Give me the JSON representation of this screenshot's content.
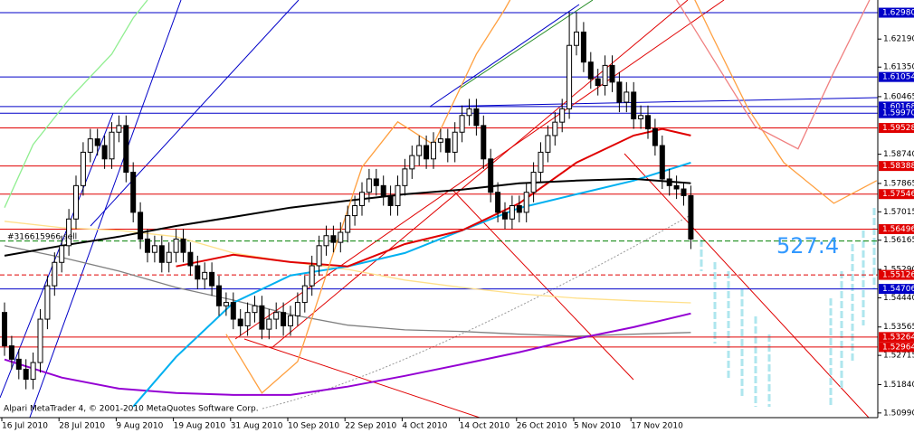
{
  "chart_data": {
    "type": "candlestick",
    "ylim": [
      1.5085,
      1.6336
    ],
    "yticks": [
      {
        "value": 1.6219,
        "label": "1.62190"
      },
      {
        "value": 1.6135,
        "label": "1.61350"
      },
      {
        "value": 1.60465,
        "label": "1.60465"
      },
      {
        "value": 1.5874,
        "label": "1.58740"
      },
      {
        "value": 1.57865,
        "label": "1.57865"
      },
      {
        "value": 1.57015,
        "label": "1.57015"
      },
      {
        "value": 1.56165,
        "label": "1.56165"
      },
      {
        "value": 1.5529,
        "label": "1.55290"
      },
      {
        "value": 1.5444,
        "label": "1.54440"
      },
      {
        "value": 1.53565,
        "label": "1.53565"
      },
      {
        "value": 1.52715,
        "label": "1.52715"
      },
      {
        "value": 1.5184,
        "label": "1.51840"
      },
      {
        "value": 1.5099,
        "label": "1.50990"
      }
    ],
    "categories": [
      "16 Jul 2010",
      null,
      null,
      null,
      null,
      null,
      null,
      null,
      "28 Jul 2010",
      null,
      null,
      null,
      null,
      null,
      null,
      null,
      "9 Aug 2010",
      null,
      null,
      null,
      null,
      null,
      null,
      null,
      "19 Aug 2010",
      null,
      null,
      null,
      null,
      null,
      null,
      null,
      "31 Aug 2010",
      null,
      null,
      null,
      null,
      null,
      null,
      null,
      "10 Sep 2010",
      null,
      null,
      null,
      null,
      null,
      null,
      null,
      "22 Sep 2010",
      null,
      null,
      null,
      null,
      null,
      null,
      null,
      "4 Oct 2010",
      null,
      null,
      null,
      null,
      null,
      null,
      null,
      "14 Oct 2010",
      null,
      null,
      null,
      null,
      null,
      null,
      null,
      "26 Oct 2010",
      null,
      null,
      null,
      null,
      null,
      null,
      null,
      "5 Nov 2010",
      null,
      null,
      null,
      null,
      null,
      null,
      null,
      "17 Nov 2010",
      null,
      null,
      null,
      null,
      null,
      null,
      null,
      null
    ],
    "open": [
      1.54,
      1.53,
      1.526,
      1.523,
      1.52,
      1.525,
      1.538,
      1.548,
      1.555,
      1.56,
      1.568,
      1.578,
      1.588,
      1.592,
      1.59,
      1.586,
      1.594,
      1.596,
      1.582,
      1.57,
      1.562,
      1.558,
      1.56,
      1.555,
      1.558,
      1.562,
      1.558,
      1.554,
      1.55,
      1.552,
      1.548,
      1.542,
      1.543,
      1.538,
      1.536,
      1.54,
      1.542,
      1.535,
      1.538,
      1.54,
      1.536,
      1.539,
      1.543,
      1.548,
      1.554,
      1.56,
      1.563,
      1.561,
      1.564,
      1.569,
      1.572,
      1.576,
      1.58,
      1.578,
      1.575,
      1.572,
      1.578,
      1.583,
      1.587,
      1.59,
      1.586,
      1.591,
      1.592,
      1.588,
      1.594,
      1.599,
      1.601,
      1.596,
      1.586,
      1.576,
      1.57,
      1.568,
      1.572,
      1.57,
      1.576,
      1.582,
      1.588,
      1.593,
      1.597,
      1.601,
      1.62,
      1.624,
      1.615,
      1.61,
      1.608,
      1.614,
      1.609,
      1.603,
      1.606,
      1.598,
      1.599,
      1.595,
      1.59,
      1.58,
      1.578,
      1.577,
      1.575
    ],
    "high": [
      1.543,
      1.533,
      1.529,
      1.526,
      1.528,
      1.541,
      1.551,
      1.558,
      1.563,
      1.571,
      1.581,
      1.591,
      1.595,
      1.595,
      1.593,
      1.597,
      1.599,
      1.599,
      1.585,
      1.573,
      1.565,
      1.563,
      1.563,
      1.561,
      1.565,
      1.565,
      1.561,
      1.557,
      1.555,
      1.555,
      1.551,
      1.546,
      1.546,
      1.541,
      1.543,
      1.545,
      1.545,
      1.541,
      1.543,
      1.543,
      1.542,
      1.546,
      1.551,
      1.557,
      1.563,
      1.566,
      1.566,
      1.567,
      1.572,
      1.575,
      1.579,
      1.583,
      1.583,
      1.581,
      1.578,
      1.581,
      1.586,
      1.59,
      1.593,
      1.593,
      1.594,
      1.595,
      1.595,
      1.597,
      1.602,
      1.604,
      1.604,
      1.599,
      1.589,
      1.579,
      1.573,
      1.575,
      1.575,
      1.579,
      1.585,
      1.591,
      1.596,
      1.6,
      1.604,
      1.63,
      1.63,
      1.627,
      1.618,
      1.613,
      1.617,
      1.617,
      1.612,
      1.609,
      1.609,
      1.602,
      1.602,
      1.598,
      1.593,
      1.583,
      1.581,
      1.579,
      1.578
    ],
    "low": [
      1.527,
      1.523,
      1.52,
      1.517,
      1.517,
      1.522,
      1.535,
      1.545,
      1.552,
      1.557,
      1.565,
      1.575,
      1.585,
      1.587,
      1.583,
      1.583,
      1.591,
      1.579,
      1.567,
      1.559,
      1.555,
      1.555,
      1.552,
      1.552,
      1.555,
      1.555,
      1.551,
      1.547,
      1.547,
      1.545,
      1.539,
      1.539,
      1.535,
      1.533,
      1.533,
      1.537,
      1.532,
      1.532,
      1.535,
      1.533,
      1.533,
      1.536,
      1.54,
      1.545,
      1.551,
      1.557,
      1.558,
      1.558,
      1.561,
      1.566,
      1.569,
      1.573,
      1.575,
      1.572,
      1.569,
      1.569,
      1.575,
      1.58,
      1.584,
      1.583,
      1.583,
      1.588,
      1.585,
      1.585,
      1.591,
      1.596,
      1.593,
      1.583,
      1.573,
      1.567,
      1.565,
      1.565,
      1.567,
      1.567,
      1.573,
      1.579,
      1.585,
      1.59,
      1.594,
      1.598,
      1.617,
      1.612,
      1.607,
      1.605,
      1.605,
      1.606,
      1.6,
      1.6,
      1.595,
      1.595,
      1.592,
      1.587,
      1.577,
      1.575,
      1.574,
      1.572,
      1.559
    ],
    "close": [
      1.53,
      1.526,
      1.523,
      1.52,
      1.525,
      1.538,
      1.548,
      1.555,
      1.56,
      1.568,
      1.578,
      1.588,
      1.592,
      1.59,
      1.586,
      1.594,
      1.596,
      1.582,
      1.57,
      1.562,
      1.558,
      1.56,
      1.555,
      1.558,
      1.562,
      1.558,
      1.554,
      1.55,
      1.552,
      1.548,
      1.542,
      1.543,
      1.538,
      1.536,
      1.54,
      1.542,
      1.535,
      1.538,
      1.54,
      1.536,
      1.539,
      1.543,
      1.548,
      1.554,
      1.56,
      1.563,
      1.561,
      1.564,
      1.569,
      1.572,
      1.576,
      1.58,
      1.578,
      1.575,
      1.572,
      1.578,
      1.583,
      1.587,
      1.59,
      1.586,
      1.591,
      1.592,
      1.588,
      1.594,
      1.599,
      1.601,
      1.596,
      1.586,
      1.576,
      1.57,
      1.568,
      1.572,
      1.57,
      1.576,
      1.582,
      1.588,
      1.593,
      1.597,
      1.601,
      1.62,
      1.624,
      1.615,
      1.61,
      1.608,
      1.614,
      1.609,
      1.603,
      1.606,
      1.598,
      1.599,
      1.595,
      1.59,
      1.58,
      1.578,
      1.577,
      1.575,
      1.562
    ],
    "indicators": [
      {
        "color": "#ffe08a",
        "x": [
          0,
          8,
          16,
          24,
          32,
          40,
          48,
          56,
          64,
          72,
          80,
          88,
          96
        ],
        "values": [
          1.5673,
          1.5654,
          1.5646,
          1.5627,
          1.5578,
          1.5551,
          1.5529,
          1.5497,
          1.5475,
          1.5456,
          1.5443,
          1.5435,
          1.5429
        ]
      },
      {
        "color": "#808080",
        "x": [
          0,
          8,
          16,
          24,
          32,
          40,
          48,
          56,
          64,
          72,
          80,
          88,
          96
        ],
        "values": [
          1.56,
          1.5565,
          1.5524,
          1.5475,
          1.5437,
          1.5394,
          1.5362,
          1.5348,
          1.5343,
          1.5335,
          1.5329,
          1.5335,
          1.534
        ]
      },
      {
        "color": "#9400d3",
        "x": [
          0,
          8,
          16,
          24,
          32,
          40,
          48,
          56,
          64,
          72,
          80,
          88,
          96
        ],
        "values": [
          1.5259,
          1.5205,
          1.5172,
          1.5159,
          1.5153,
          1.5153,
          1.5178,
          1.521,
          1.5245,
          1.5281,
          1.5321,
          1.5356,
          1.5397
        ]
      },
      {
        "color": "#00b0f0",
        "x": [
          18,
          24,
          32,
          40,
          48,
          56,
          64,
          72,
          80,
          88,
          96
        ],
        "values": [
          1.5118,
          1.5267,
          1.5429,
          1.5511,
          1.5538,
          1.5578,
          1.5646,
          1.5713,
          1.5754,
          1.5795,
          1.5849
        ]
      },
      {
        "color": "#e00000",
        "x": [
          24,
          32,
          40,
          48,
          56,
          64,
          72,
          80,
          88,
          92,
          96
        ],
        "values": [
          1.5538,
          1.5573,
          1.5551,
          1.5538,
          1.5605,
          1.5646,
          1.5727,
          1.5849,
          1.593,
          1.595,
          1.593
        ]
      },
      {
        "color": "#000000",
        "x": [
          0,
          8,
          16,
          24,
          32,
          40,
          48,
          56,
          64,
          72,
          80,
          88,
          96
        ],
        "values": [
          1.557,
          1.56,
          1.5627,
          1.5659,
          1.5686,
          1.5714,
          1.5735,
          1.5754,
          1.5768,
          1.5787,
          1.5795,
          1.58,
          1.5787
        ]
      },
      {
        "color": "#ffa040",
        "x": [
          31,
          36,
          41,
          46,
          50,
          55,
          60,
          66,
          70,
          75,
          94,
          99,
          104,
          109,
          116,
          122
        ],
        "values": [
          1.5335,
          1.5159,
          1.5253,
          1.5578,
          1.5835,
          1.5971,
          1.5903,
          1.6174,
          1.6309,
          1.65,
          1.645,
          1.6228,
          1.6011,
          1.5849,
          1.5727,
          1.5795
        ]
      },
      {
        "color": "#f08080",
        "x": [
          94,
          105,
          111,
          116,
          121
        ],
        "values": [
          1.6336,
          1.5957,
          1.589,
          1.612,
          1.6336
        ]
      },
      {
        "color": "#90ee90",
        "x": [
          0,
          4,
          9,
          15,
          18,
          20
        ],
        "values": [
          1.5714,
          1.5903,
          1.6038,
          1.6174,
          1.6282,
          1.6336
        ]
      }
    ],
    "levels": [
      {
        "value": 1.6298,
        "label": "1.62980",
        "color": "#0000c8"
      },
      {
        "value": 1.61054,
        "label": "1.61054",
        "color": "#0000c8"
      },
      {
        "value": 1.60168,
        "label": "1.60168",
        "color": "#0000c8"
      },
      {
        "value": 1.5997,
        "label": "1.59970",
        "color": "#0000c8"
      },
      {
        "value": 1.59528,
        "label": "1.59528",
        "color": "#e00000"
      },
      {
        "value": 1.58388,
        "label": "1.58388",
        "color": "#e00000"
      },
      {
        "value": 1.57546,
        "label": "1.57546",
        "color": "#e00000"
      },
      {
        "value": 1.56496,
        "label": "1.56496",
        "color": "#e00000"
      },
      {
        "value": 1.55126,
        "label": "1.55126",
        "color": "#e00000",
        "dashed": true
      },
      {
        "value": 1.54706,
        "label": "1.54706",
        "color": "#0000c8"
      },
      {
        "value": 1.53264,
        "label": "1.53264",
        "color": "#e00000"
      },
      {
        "value": 1.52964,
        "label": "1.52964",
        "color": "#e00000"
      }
    ],
    "order_level": 1.5614,
    "order_label": "#316615966 sell",
    "ratio_label": "527:4",
    "copyright": "Alpari MetaTrader 4, © 2001-2010 MetaQuotes Software Corp."
  }
}
